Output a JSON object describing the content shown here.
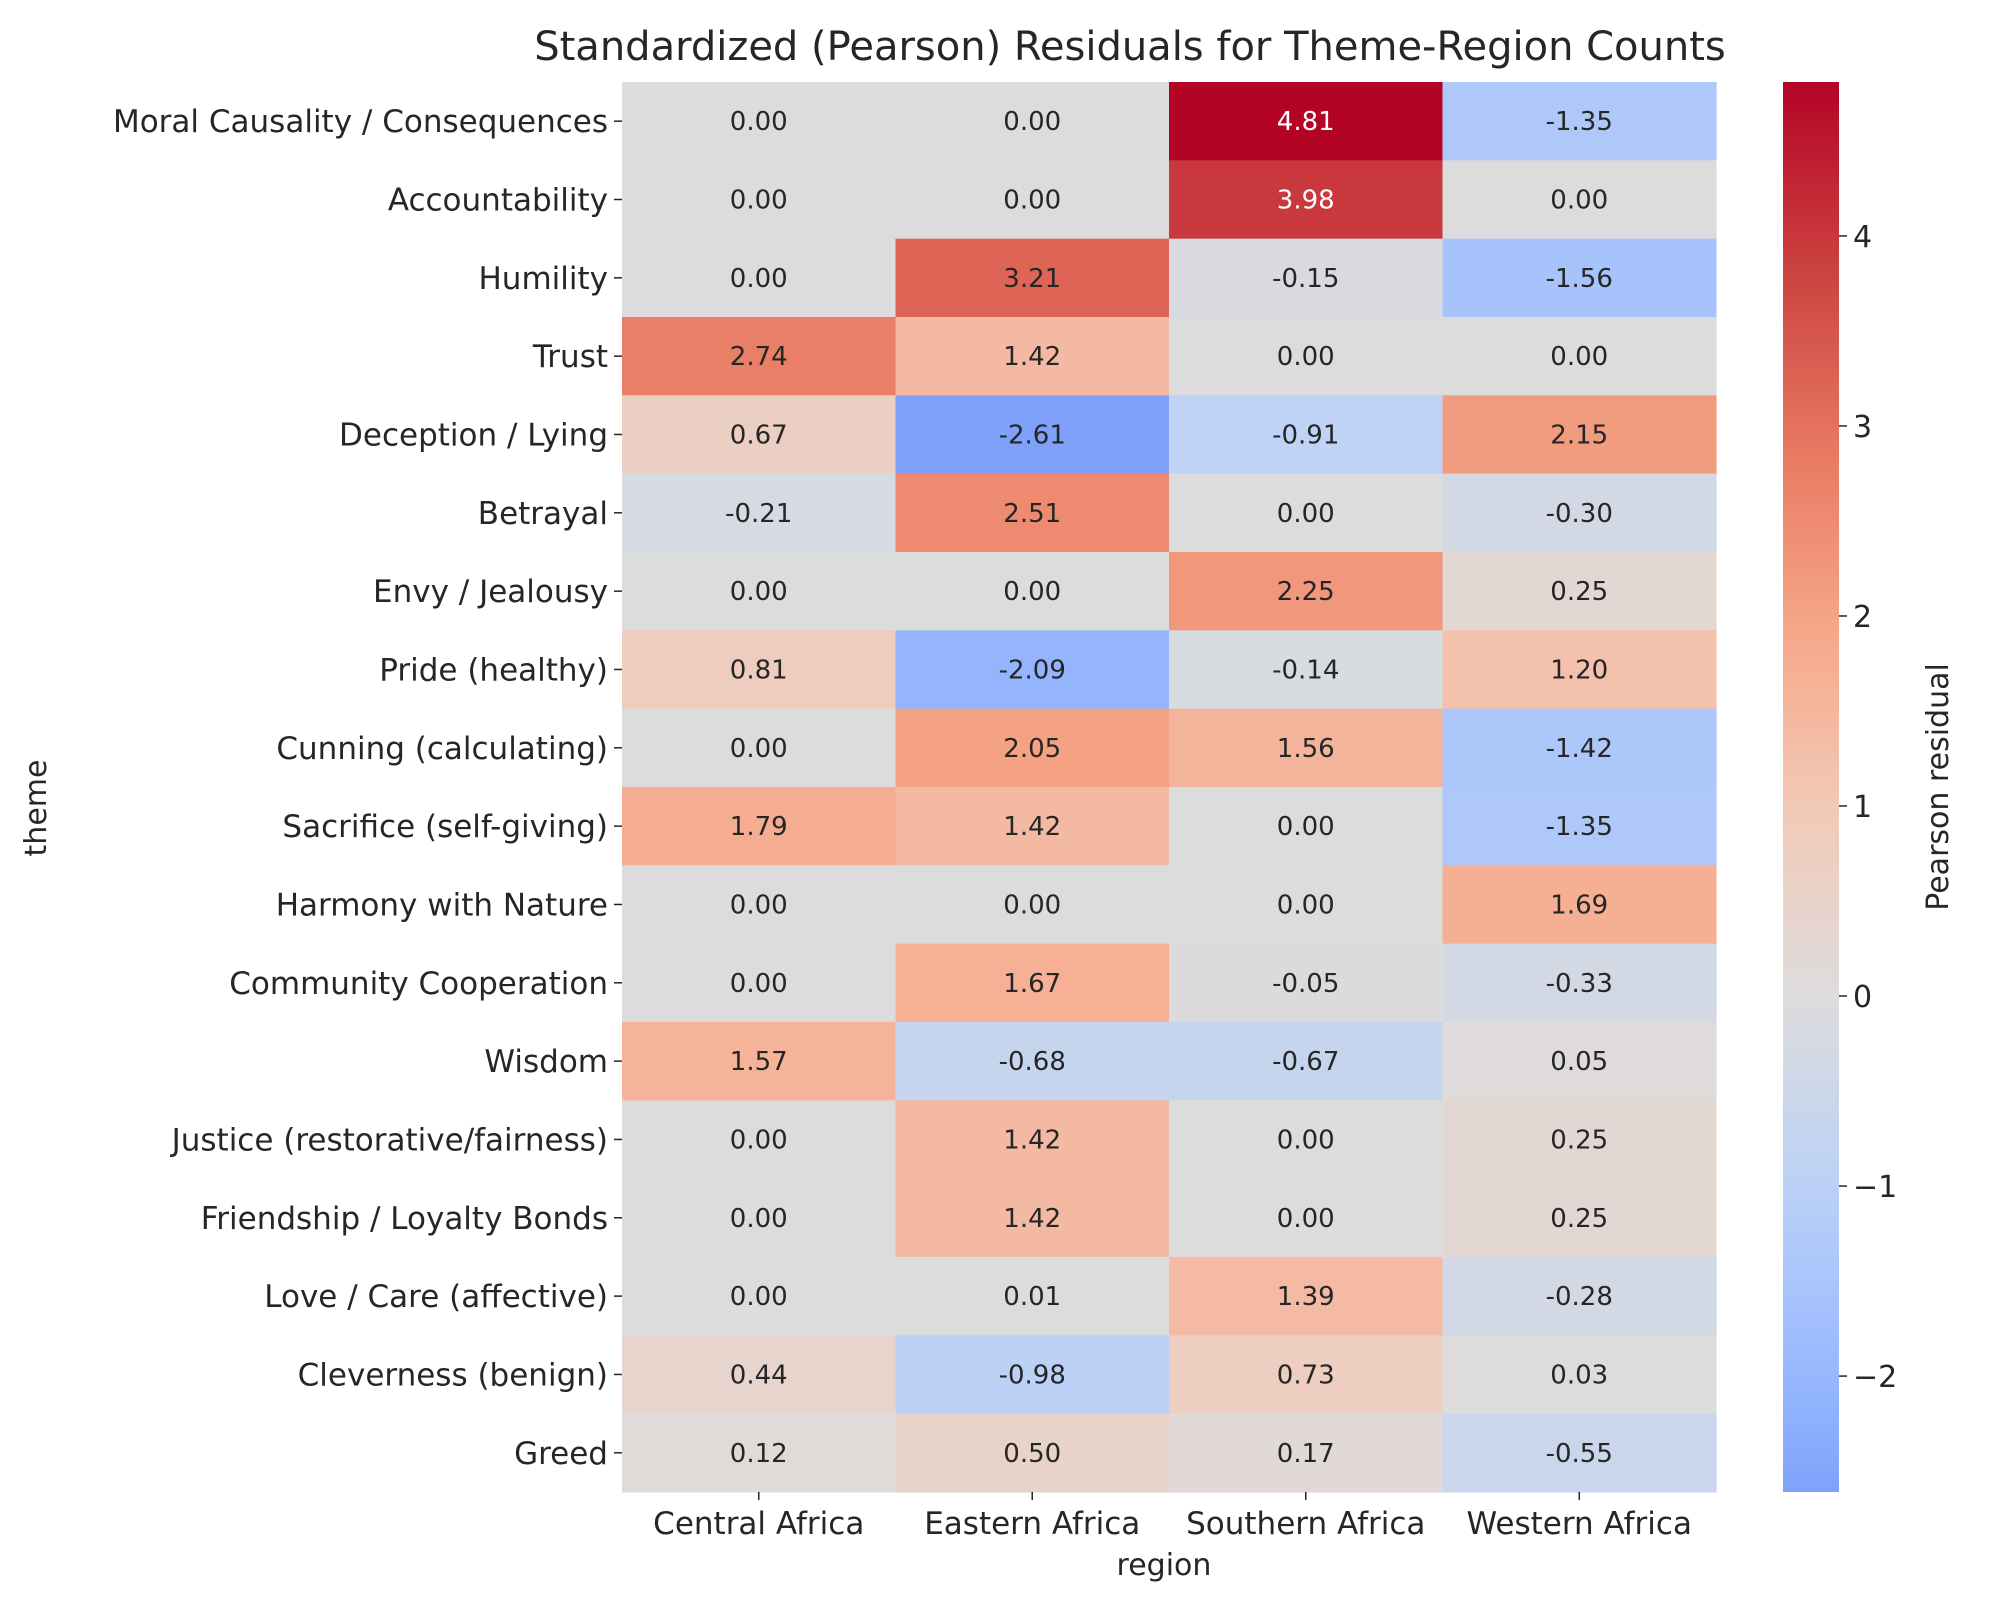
{
  "chart_data": {
    "type": "heatmap",
    "title": "Standardized (Pearson) Residuals for Theme-Region Counts",
    "xlabel": "region",
    "ylabel": "theme",
    "x_categories": [
      "Central Africa",
      "Eastern Africa",
      "Southern Africa",
      "Western Africa"
    ],
    "y_categories": [
      "Moral Causality / Consequences",
      "Accountability",
      "Humility",
      "Trust",
      "Deception / Lying",
      "Betrayal",
      "Envy / Jealousy",
      "Pride (healthy)",
      "Cunning (calculating)",
      "Sacrifice (self-giving)",
      "Harmony with Nature",
      "Community Cooperation",
      "Wisdom",
      "Justice (restorative/fairness)",
      "Friendship / Loyalty Bonds",
      "Love / Care (affective)",
      "Cleverness (benign)",
      "Greed"
    ],
    "values": [
      [
        0.0,
        0.0,
        4.81,
        -1.35
      ],
      [
        0.0,
        0.0,
        3.98,
        0.0
      ],
      [
        0.0,
        3.21,
        -0.15,
        -1.56
      ],
      [
        2.74,
        1.42,
        0.0,
        0.0
      ],
      [
        0.67,
        -2.61,
        -0.91,
        2.15
      ],
      [
        -0.21,
        2.51,
        0.0,
        -0.3
      ],
      [
        0.0,
        0.0,
        2.25,
        0.25
      ],
      [
        0.81,
        -2.09,
        -0.14,
        1.2
      ],
      [
        0.0,
        2.05,
        1.56,
        -1.42
      ],
      [
        1.79,
        1.42,
        0.0,
        -1.35
      ],
      [
        0.0,
        0.0,
        0.0,
        1.69
      ],
      [
        0.0,
        1.67,
        -0.05,
        -0.33
      ],
      [
        1.57,
        -0.68,
        -0.67,
        0.05
      ],
      [
        0.0,
        1.42,
        0.0,
        0.25
      ],
      [
        0.0,
        1.42,
        0.0,
        0.25
      ],
      [
        0.0,
        0.01,
        1.39,
        -0.28
      ],
      [
        0.44,
        -0.98,
        0.73,
        0.03
      ],
      [
        0.12,
        0.5,
        0.17,
        -0.55
      ]
    ],
    "colormap": "coolwarm",
    "center": 0,
    "vmin": -2.61,
    "vmax": 4.81,
    "colorbar": {
      "label": "Pearson residual",
      "ticks": [
        -2,
        -1,
        0,
        1,
        2,
        3,
        4
      ],
      "tick_labels": [
        "−2",
        "−1",
        "0",
        "1",
        "2",
        "3",
        "4"
      ]
    },
    "annotations": true
  }
}
